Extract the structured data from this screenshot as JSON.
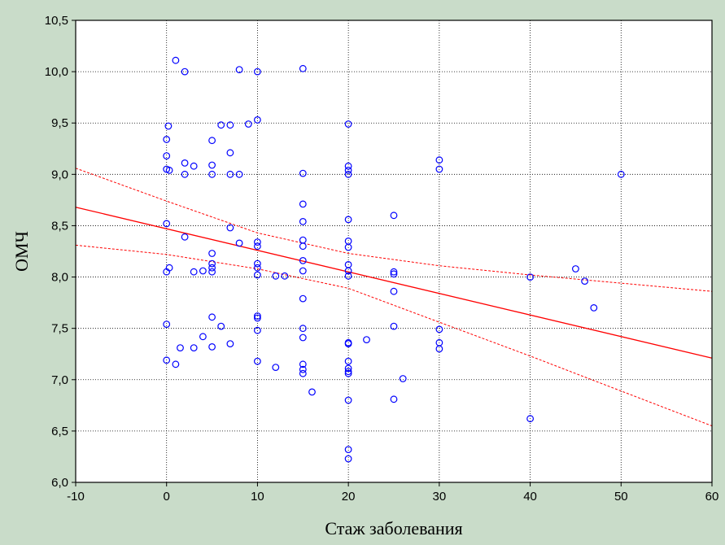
{
  "chart_data": {
    "type": "scatter",
    "title": "",
    "xlabel": "Стаж заболевания",
    "ylabel": "ОМЧ",
    "xlim": [
      -10,
      60
    ],
    "ylim": [
      6.0,
      10.5
    ],
    "x_ticks": [
      "-10",
      "0",
      "10",
      "20",
      "30",
      "40",
      "50",
      "60"
    ],
    "y_ticks": [
      "6,0",
      "6,5",
      "7,0",
      "7,5",
      "8,0",
      "8,5",
      "9,0",
      "9,5",
      "10,0",
      "10,5"
    ],
    "grid": true,
    "legend": "none",
    "points_color": "#0000ff",
    "fit_color": "#ff0000",
    "points": [
      [
        0,
        7.19
      ],
      [
        0,
        7.54
      ],
      [
        0,
        8.05
      ],
      [
        0.3,
        8.09
      ],
      [
        0,
        8.52
      ],
      [
        0,
        9.05
      ],
      [
        0.3,
        9.04
      ],
      [
        0,
        9.18
      ],
      [
        0,
        9.34
      ],
      [
        0.2,
        9.47
      ],
      [
        1,
        10.11
      ],
      [
        2,
        10.0
      ],
      [
        1,
        7.15
      ],
      [
        1.5,
        7.31
      ],
      [
        2,
        8.39
      ],
      [
        2,
        9.0
      ],
      [
        2,
        9.11
      ],
      [
        3,
        9.08
      ],
      [
        3,
        7.31
      ],
      [
        3,
        8.05
      ],
      [
        4,
        8.06
      ],
      [
        4,
        7.42
      ],
      [
        5,
        7.32
      ],
      [
        5,
        7.61
      ],
      [
        5,
        8.05
      ],
      [
        5,
        8.09
      ],
      [
        5,
        8.13
      ],
      [
        5,
        8.23
      ],
      [
        5,
        9.0
      ],
      [
        5,
        9.09
      ],
      [
        5,
        9.33
      ],
      [
        6,
        7.52
      ],
      [
        6,
        9.48
      ],
      [
        7,
        7.35
      ],
      [
        7,
        8.48
      ],
      [
        7,
        9.0
      ],
      [
        7,
        9.21
      ],
      [
        7,
        9.48
      ],
      [
        8,
        8.33
      ],
      [
        8,
        9.0
      ],
      [
        8,
        10.02
      ],
      [
        9,
        9.49
      ],
      [
        10,
        7.18
      ],
      [
        10,
        7.48
      ],
      [
        10,
        7.6
      ],
      [
        10,
        7.62
      ],
      [
        10,
        8.02
      ],
      [
        10,
        8.09
      ],
      [
        10,
        8.13
      ],
      [
        10,
        8.3
      ],
      [
        10,
        8.34
      ],
      [
        10,
        9.53
      ],
      [
        10,
        10.0
      ],
      [
        12,
        7.12
      ],
      [
        12,
        8.01
      ],
      [
        13,
        8.01
      ],
      [
        15,
        7.06
      ],
      [
        15,
        7.1
      ],
      [
        15,
        7.15
      ],
      [
        15,
        7.41
      ],
      [
        15,
        7.5
      ],
      [
        15,
        7.79
      ],
      [
        15,
        8.06
      ],
      [
        15,
        8.16
      ],
      [
        15,
        8.3
      ],
      [
        15,
        8.36
      ],
      [
        15,
        8.54
      ],
      [
        15,
        8.71
      ],
      [
        15,
        9.01
      ],
      [
        15,
        10.03
      ],
      [
        16,
        6.88
      ],
      [
        20,
        6.23
      ],
      [
        20,
        6.32
      ],
      [
        20,
        6.8
      ],
      [
        20,
        7.06
      ],
      [
        20,
        7.08
      ],
      [
        20,
        7.11
      ],
      [
        20,
        7.18
      ],
      [
        20,
        7.35
      ],
      [
        20,
        7.36
      ],
      [
        20,
        8.01
      ],
      [
        20,
        8.06
      ],
      [
        20,
        8.12
      ],
      [
        20,
        8.29
      ],
      [
        20,
        8.35
      ],
      [
        20,
        8.56
      ],
      [
        20,
        9.0
      ],
      [
        20,
        9.04
      ],
      [
        20,
        9.08
      ],
      [
        20,
        9.49
      ],
      [
        22,
        7.39
      ],
      [
        25,
        6.81
      ],
      [
        25,
        7.52
      ],
      [
        25,
        7.86
      ],
      [
        25,
        8.03
      ],
      [
        25,
        8.05
      ],
      [
        25,
        8.6
      ],
      [
        26,
        7.01
      ],
      [
        30,
        7.3
      ],
      [
        30,
        7.36
      ],
      [
        30,
        7.49
      ],
      [
        30,
        9.05
      ],
      [
        30,
        9.14
      ],
      [
        40,
        6.62
      ],
      [
        40,
        8.0
      ],
      [
        45,
        8.08
      ],
      [
        46,
        7.96
      ],
      [
        47,
        7.7
      ],
      [
        50,
        9.0
      ]
    ],
    "regression": {
      "x": [
        -10,
        60
      ],
      "y": [
        8.68,
        7.21
      ]
    },
    "ci_upper": {
      "x": [
        -10,
        0,
        10,
        20,
        30,
        40,
        50,
        60
      ],
      "y": [
        9.06,
        8.74,
        8.43,
        8.23,
        8.11,
        8.02,
        7.94,
        7.86
      ]
    },
    "ci_lower": {
      "x": [
        -10,
        0,
        10,
        20,
        30,
        40,
        50,
        60
      ],
      "y": [
        8.31,
        8.22,
        8.08,
        7.89,
        7.56,
        7.23,
        6.89,
        6.55
      ]
    }
  }
}
